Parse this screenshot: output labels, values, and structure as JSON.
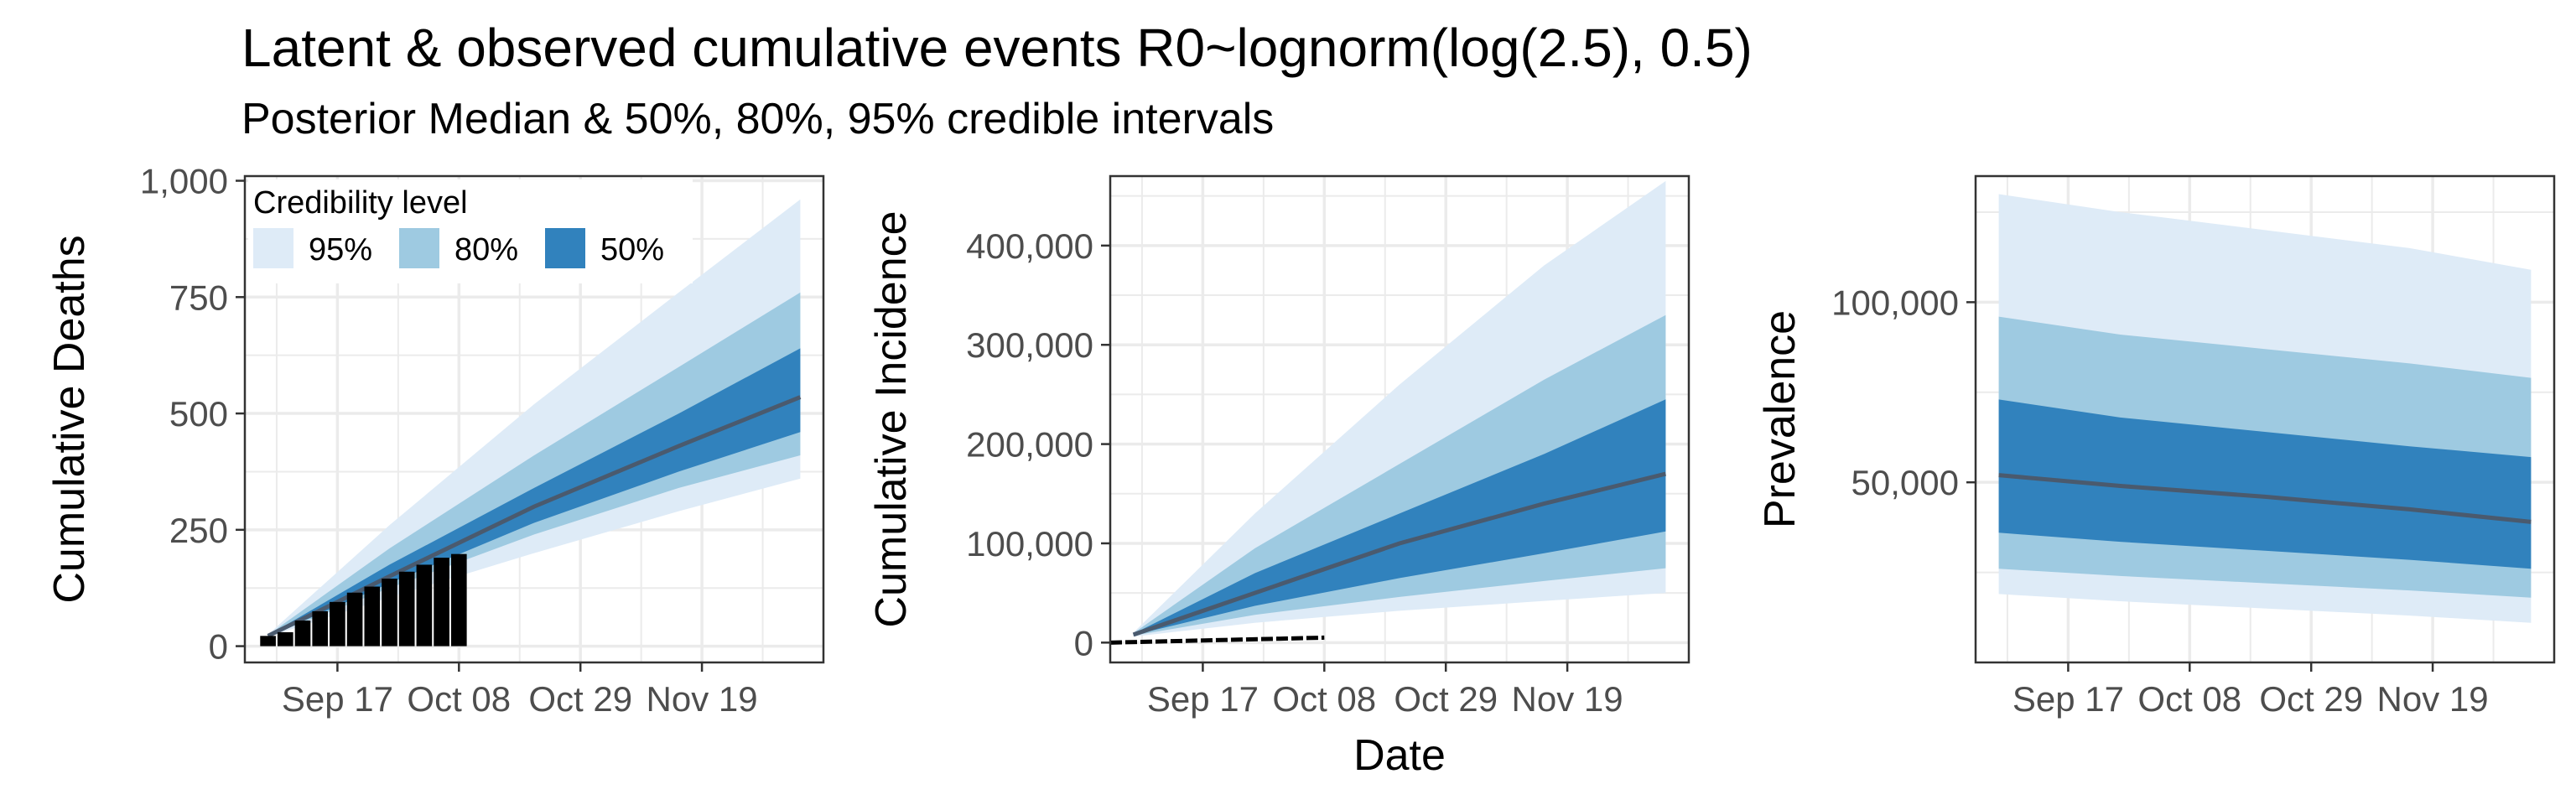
{
  "title": "Latent & observed cumulative events R0~lognorm(log(2.5), 0.5)",
  "subtitle": "Posterior Median & 50%, 80%, 95% credible intervals",
  "shared_xlabel": "Date",
  "legend": {
    "title": "Credibility level",
    "entries": [
      {
        "label": "95%",
        "color": "#deebf7"
      },
      {
        "label": "80%",
        "color": "#9ecae1"
      },
      {
        "label": "50%",
        "color": "#3182bd"
      }
    ]
  },
  "colors": {
    "band95": "#deebf7",
    "band80": "#9ecae1",
    "band50": "#3182bd",
    "median": "#4a5a6e",
    "observed": "#000000",
    "grid": "#ebebeb",
    "panel_border": "#333333"
  },
  "chart_data": [
    {
      "type": "area",
      "name": "deaths",
      "ylabel": "Cumulative Deaths",
      "xlabel": "",
      "x_unit": "days since Sep 01",
      "xlim": [
        0,
        100
      ],
      "ylim": [
        -35,
        1010
      ],
      "xticks": [
        {
          "value": 16,
          "label": "Sep 17"
        },
        {
          "value": 37,
          "label": "Oct 08"
        },
        {
          "value": 58,
          "label": "Oct 29"
        },
        {
          "value": 79,
          "label": "Nov 19"
        }
      ],
      "yticks": [
        {
          "value": 0,
          "label": "0"
        },
        {
          "value": 250,
          "label": "250"
        },
        {
          "value": 500,
          "label": "500"
        },
        {
          "value": 750,
          "label": "750"
        },
        {
          "value": 1000,
          "label": "1,000"
        }
      ],
      "x": [
        4,
        25,
        50,
        75,
        96
      ],
      "median": [
        22,
        150,
        300,
        430,
        535
      ],
      "lo95": [
        20,
        105,
        200,
        290,
        360
      ],
      "hi95": [
        25,
        260,
        520,
        760,
        960
      ],
      "lo80": [
        21,
        125,
        240,
        340,
        410
      ],
      "hi80": [
        24,
        210,
        410,
        600,
        760
      ],
      "lo50": [
        21,
        135,
        265,
        375,
        460
      ],
      "hi50": [
        23,
        175,
        340,
        500,
        640
      ],
      "observed": {
        "type": "bar",
        "x": [
          4,
          7,
          10,
          13,
          16,
          19,
          22,
          25,
          28,
          31,
          34,
          37
        ],
        "values": [
          22,
          30,
          55,
          75,
          95,
          115,
          128,
          145,
          160,
          175,
          190,
          198
        ]
      },
      "legend_position": "top-left"
    },
    {
      "type": "area",
      "name": "incidence",
      "ylabel": "Cumulative Incidence",
      "xlabel": "Date",
      "x_unit": "days since Sep 01",
      "xlim": [
        0,
        100
      ],
      "ylim": [
        -20000,
        470000
      ],
      "xticks": [
        {
          "value": 16,
          "label": "Sep 17"
        },
        {
          "value": 37,
          "label": "Oct 08"
        },
        {
          "value": 58,
          "label": "Oct 29"
        },
        {
          "value": 79,
          "label": "Nov 19"
        }
      ],
      "yticks": [
        {
          "value": 0,
          "label": "0"
        },
        {
          "value": 100000,
          "label": "100,000"
        },
        {
          "value": 200000,
          "label": "200,000"
        },
        {
          "value": 300000,
          "label": "300,000"
        },
        {
          "value": 400000,
          "label": "400,000"
        }
      ],
      "x": [
        4,
        25,
        50,
        75,
        96
      ],
      "median": [
        8000,
        50000,
        100000,
        140000,
        170000
      ],
      "lo95": [
        6000,
        20000,
        32000,
        42000,
        50000
      ],
      "hi95": [
        10000,
        130000,
        260000,
        380000,
        465000
      ],
      "lo80": [
        7000,
        28000,
        46000,
        62000,
        75000
      ],
      "hi80": [
        9500,
        95000,
        180000,
        265000,
        330000
      ],
      "lo50": [
        7500,
        37000,
        65000,
        90000,
        112000
      ],
      "hi50": [
        9000,
        70000,
        130000,
        190000,
        245000
      ],
      "observed": {
        "type": "step",
        "x": [
          0,
          37
        ],
        "values": [
          0,
          5000
        ]
      }
    },
    {
      "type": "area",
      "name": "prevalence",
      "ylabel": "Prevalence",
      "xlabel": "",
      "x_unit": "days since Sep 01",
      "xlim": [
        0,
        100
      ],
      "ylim": [
        0,
        135000
      ],
      "xticks": [
        {
          "value": 16,
          "label": "Sep 17"
        },
        {
          "value": 37,
          "label": "Oct 08"
        },
        {
          "value": 58,
          "label": "Oct 29"
        },
        {
          "value": 79,
          "label": "Nov 19"
        }
      ],
      "yticks": [
        {
          "value": 50000,
          "label": "50,000"
        },
        {
          "value": 100000,
          "label": "100,000"
        }
      ],
      "x": [
        4,
        25,
        50,
        75,
        96
      ],
      "median": [
        52000,
        49000,
        46000,
        42500,
        39000
      ],
      "lo95": [
        19000,
        17000,
        15000,
        13000,
        11000
      ],
      "hi95": [
        130000,
        125000,
        120000,
        115000,
        109000
      ],
      "lo80": [
        26000,
        24000,
        22000,
        20000,
        18000
      ],
      "hi80": [
        96000,
        91000,
        87000,
        83000,
        79000
      ],
      "lo50": [
        36000,
        33500,
        31000,
        28500,
        26000
      ],
      "hi50": [
        73000,
        68000,
        64000,
        60000,
        57000
      ]
    }
  ]
}
